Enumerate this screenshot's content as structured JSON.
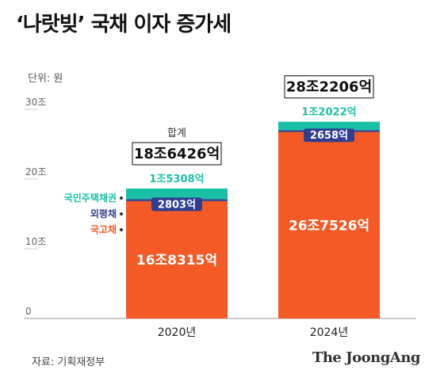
{
  "title": "‘나랏빚’ 국채 이자 증가세",
  "unit": "단위: 원",
  "source": "자료: 기획재정부",
  "brand": "The JoongAng",
  "colors": {
    "national_bond": "#f45a26",
    "foreign_bond": "#2f3e8f",
    "housing_bond": "#1bbfa5",
    "axis": "#cccccc",
    "tick_text": "#666666"
  },
  "chart_data": {
    "type": "bar",
    "stacked": true,
    "categories": [
      "2020년",
      "2024년"
    ],
    "ylim": [
      0,
      30
    ],
    "y_ticks": [
      {
        "value": 0,
        "label": "0"
      },
      {
        "value": 10,
        "label": "10조"
      },
      {
        "value": 20,
        "label": "20조"
      },
      {
        "value": 30,
        "label": "30조"
      }
    ],
    "series": [
      {
        "name": "국고채",
        "color": "#f45a26",
        "values": [
          16.8315,
          26.7526
        ],
        "labels": [
          "16조8315억",
          "26조7526억"
        ]
      },
      {
        "name": "외평채",
        "color": "#2f3e8f",
        "values": [
          0.2803,
          0.2658
        ],
        "labels": [
          "2803억",
          "2658억"
        ]
      },
      {
        "name": "국민주택채권",
        "color": "#1bbfa5",
        "values": [
          1.5308,
          1.2022
        ],
        "labels": [
          "1조5308억",
          "1조2022억"
        ]
      }
    ],
    "totals": [
      18.6426,
      28.2206
    ],
    "total_labels": [
      "18조6426억",
      "28조2206억"
    ],
    "sum_label": "합계",
    "grid": false,
    "legend_placement": "left of first bar"
  }
}
